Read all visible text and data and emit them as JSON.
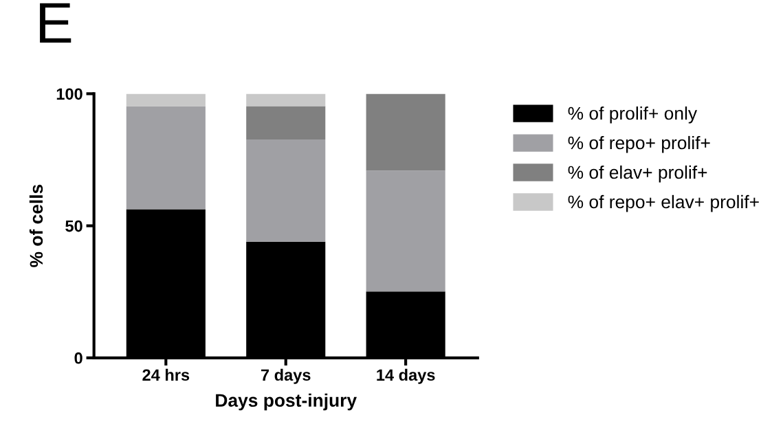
{
  "chart_data": {
    "type": "bar",
    "stacked": true,
    "xlabel": "Days post-injury",
    "ylabel": "% of cells",
    "annotations": [
      "E"
    ],
    "categories": [
      "24 hrs",
      "7 days",
      "14 days"
    ],
    "series": [
      {
        "name": "% of prolif+ only",
        "color": "#000000",
        "values": [
          56.3,
          44.0,
          25.1
        ]
      },
      {
        "name": "% of repo+ prolif+",
        "color": "#a0a0a4",
        "values": [
          39.0,
          38.7,
          45.8
        ]
      },
      {
        "name": "% of elav+ prolif+",
        "color": "#808080",
        "values": [
          0,
          12.6,
          29.1
        ]
      },
      {
        "name": "% of repo+ elav+ prolif+",
        "color": "#c8c8c8",
        "values": [
          4.7,
          4.7,
          0
        ]
      }
    ],
    "ylim": [
      0,
      100
    ],
    "yticks": [
      0,
      50,
      100
    ],
    "grid": false,
    "legend": "right"
  }
}
